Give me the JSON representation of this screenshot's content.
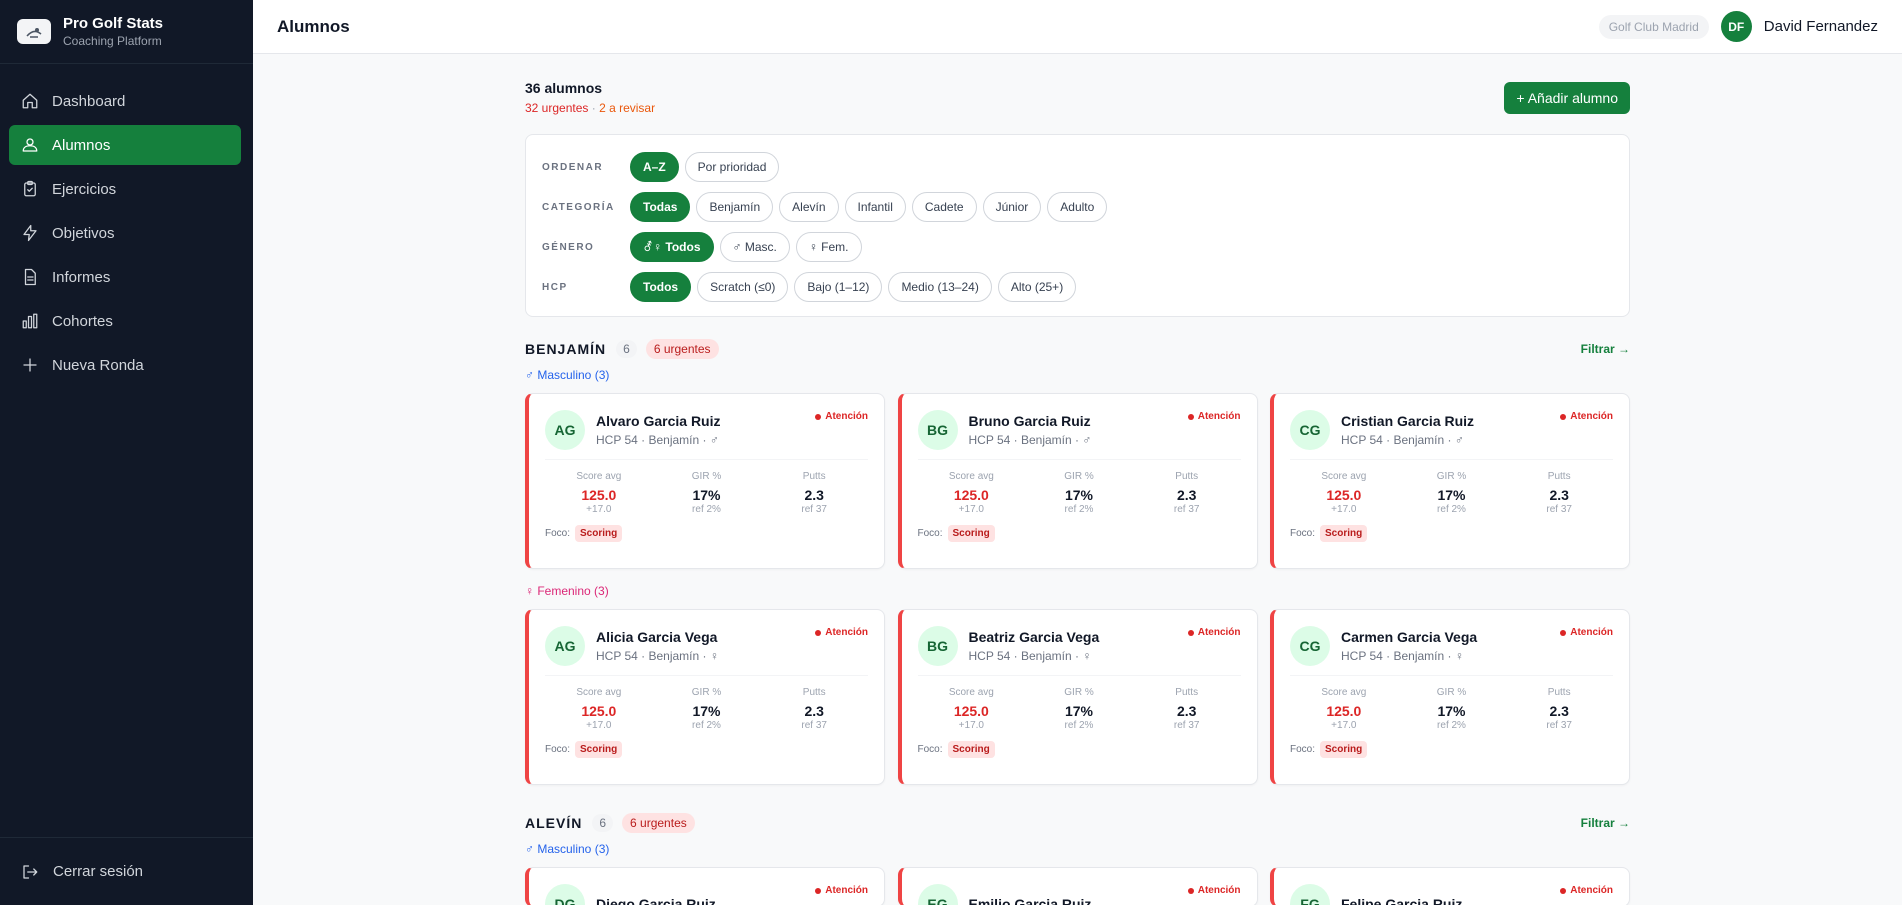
{
  "brand": {
    "name": "Pro Golf Stats",
    "subtitle": "Coaching Platform"
  },
  "nav": {
    "items": [
      {
        "label": "Dashboard",
        "icon": "home-icon"
      },
      {
        "label": "Alumnos",
        "icon": "users-icon",
        "active": true
      },
      {
        "label": "Ejercicios",
        "icon": "clipboard-icon"
      },
      {
        "label": "Objetivos",
        "icon": "bolt-icon"
      },
      {
        "label": "Informes",
        "icon": "document-icon"
      },
      {
        "label": "Cohortes",
        "icon": "bar-chart-icon"
      },
      {
        "label": "Nueva Ronda",
        "icon": "plus-icon"
      }
    ],
    "logout": "Cerrar sesión"
  },
  "header": {
    "title": "Alumnos",
    "club": "Golf Club Madrid",
    "user_initials": "DF",
    "user_name": "David Fernandez"
  },
  "summary": {
    "count": "36 alumnos",
    "urgent": "32 urgentes",
    "sep": " · ",
    "review": "2 a revisar",
    "add_button": "+ Añadir alumno"
  },
  "filters": {
    "ordenar": {
      "label": "ORDENAR",
      "options": [
        "A–Z",
        "Por prioridad"
      ],
      "active": "A–Z"
    },
    "categoria": {
      "label": "CATEGORÍA",
      "options": [
        "Todas",
        "Benjamín",
        "Alevín",
        "Infantil",
        "Cadete",
        "Júnior",
        "Adulto"
      ],
      "active": "Todas"
    },
    "genero": {
      "label": "GÉNERO",
      "options": [
        "⚦♀ Todos",
        "♂ Masc.",
        "♀ Fem."
      ],
      "active": "⚦♀ Todos"
    },
    "hcp": {
      "label": "HCP",
      "options": [
        "Todos",
        "Scratch (≤0)",
        "Bajo (1–12)",
        "Medio (13–24)",
        "Alto (25+)"
      ],
      "active": "Todos"
    }
  },
  "card_labels": {
    "attention": "Atención",
    "score": "Score avg",
    "gir": "GIR %",
    "putts": "Putts",
    "focus": "Foco:"
  },
  "sections": [
    {
      "title": "BENJAMÍN",
      "count": "6",
      "urgent": "6 urgentes",
      "filter_link": "Filtrar →",
      "male_label": "♂ Masculino (3)",
      "female_label": "♀ Femenino (3)",
      "male": [
        {
          "initials": "AG",
          "name": "Alvaro Garcia Ruiz",
          "meta": "HCP 54 · Benjamín · ♂",
          "score": "125.0",
          "score_sub": "+17.0",
          "gir": "17%",
          "gir_sub": "ref 2%",
          "putts": "2.3",
          "putts_sub": "ref 37",
          "focus": "Scoring"
        },
        {
          "initials": "BG",
          "name": "Bruno Garcia Ruiz",
          "meta": "HCP 54 · Benjamín · ♂",
          "score": "125.0",
          "score_sub": "+17.0",
          "gir": "17%",
          "gir_sub": "ref 2%",
          "putts": "2.3",
          "putts_sub": "ref 37",
          "focus": "Scoring"
        },
        {
          "initials": "CG",
          "name": "Cristian Garcia Ruiz",
          "meta": "HCP 54 · Benjamín · ♂",
          "score": "125.0",
          "score_sub": "+17.0",
          "gir": "17%",
          "gir_sub": "ref 2%",
          "putts": "2.3",
          "putts_sub": "ref 37",
          "focus": "Scoring"
        }
      ],
      "female": [
        {
          "initials": "AG",
          "name": "Alicia Garcia Vega",
          "meta": "HCP 54 · Benjamín · ♀",
          "score": "125.0",
          "score_sub": "+17.0",
          "gir": "17%",
          "gir_sub": "ref 2%",
          "putts": "2.3",
          "putts_sub": "ref 37",
          "focus": "Scoring"
        },
        {
          "initials": "BG",
          "name": "Beatriz Garcia Vega",
          "meta": "HCP 54 · Benjamín · ♀",
          "score": "125.0",
          "score_sub": "+17.0",
          "gir": "17%",
          "gir_sub": "ref 2%",
          "putts": "2.3",
          "putts_sub": "ref 37",
          "focus": "Scoring"
        },
        {
          "initials": "CG",
          "name": "Carmen Garcia Vega",
          "meta": "HCP 54 · Benjamín · ♀",
          "score": "125.0",
          "score_sub": "+17.0",
          "gir": "17%",
          "gir_sub": "ref 2%",
          "putts": "2.3",
          "putts_sub": "ref 37",
          "focus": "Scoring"
        }
      ]
    },
    {
      "title": "ALEVÍN",
      "count": "6",
      "urgent": "6 urgentes",
      "filter_link": "Filtrar →",
      "male_label": "♂ Masculino (3)",
      "male": [
        {
          "initials": "DG",
          "name": "Diego Garcia Ruiz"
        },
        {
          "initials": "EG",
          "name": "Emilio Garcia Ruiz"
        },
        {
          "initials": "FG",
          "name": "Felipe Garcia Ruiz"
        }
      ]
    }
  ]
}
